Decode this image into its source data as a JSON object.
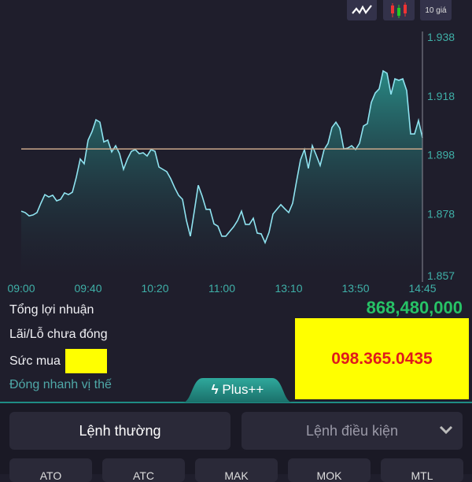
{
  "toolbar": {
    "line_chart_icon": "line-chart-icon",
    "candle_icon": "candlestick-icon",
    "depth_label": "10 giá"
  },
  "chart_data": {
    "type": "area",
    "x_ticks": [
      "09:00",
      "09:40",
      "10:20",
      "11:00",
      "13:10",
      "13:50",
      "14:45"
    ],
    "y_ticks": [
      "1.938",
      "1.918",
      "1.898",
      "1.878",
      "1.857"
    ],
    "ylim": [
      1.857,
      1.938
    ],
    "reference_line": 1.9,
    "grid": false,
    "line_color": "#8fe3f0",
    "reference_color": "#c9a88a",
    "values": [
      1.8789,
      1.8784,
      1.8773,
      1.8776,
      1.8784,
      1.8816,
      1.8845,
      1.8837,
      1.8843,
      1.8824,
      1.8829,
      1.8851,
      1.8845,
      1.8853,
      1.8904,
      1.8966,
      1.895,
      1.903,
      1.9059,
      1.9099,
      1.9091,
      1.9024,
      1.903,
      1.899,
      1.9011,
      1.8984,
      1.8931,
      1.8966,
      1.8992,
      1.8998,
      1.8984,
      1.8987,
      1.8976,
      1.8998,
      1.8992,
      1.8939,
      1.8931,
      1.8923,
      1.8899,
      1.8869,
      1.8843,
      1.8829,
      1.8757,
      1.8704,
      1.8789,
      1.8877,
      1.884,
      1.8795,
      1.8795,
      1.8746,
      1.8738,
      1.8704,
      1.8704,
      1.872,
      1.8736,
      1.8757,
      1.8789,
      1.8744,
      1.8744,
      1.8765,
      1.8714,
      1.8712,
      1.8682,
      1.8717,
      1.8779,
      1.8795,
      1.8811,
      1.8797,
      1.8784,
      1.8816,
      1.8891,
      1.8963,
      1.8998,
      1.8934,
      1.9011,
      1.8979,
      1.8944,
      1.8998,
      1.9019,
      1.9073,
      1.9091,
      1.907,
      1.9,
      1.9003,
      1.9011,
      1.8998,
      1.9019,
      1.9078,
      1.9086,
      1.9158,
      1.919,
      1.9204,
      1.9265,
      1.9257,
      1.9185,
      1.9238,
      1.9233,
      1.9238,
      1.9198,
      1.9051,
      1.9051,
      1.9097,
      1.9038
    ]
  },
  "summary": {
    "total_profit_label": "Tổng lợi nhuận",
    "total_profit_value": "868,480,000",
    "unrealized_label": "Lãi/Lỗ chưa đóng",
    "buying_power_label": "Sức mua",
    "quick_close_label": "Đóng nhanh vị thế",
    "phone_overlay": "098.365.0435"
  },
  "plus_tab": {
    "label": "Plus++",
    "icon": "lightning-icon"
  },
  "order_types": {
    "normal": "Lệnh thường",
    "conditional": "Lệnh điều kiện"
  },
  "price_types": [
    "ATO",
    "ATC",
    "MAK",
    "MOK",
    "MTL"
  ],
  "colors": {
    "profit": "#27c266",
    "accent": "#1f8c84",
    "background": "#1f1e2c"
  }
}
